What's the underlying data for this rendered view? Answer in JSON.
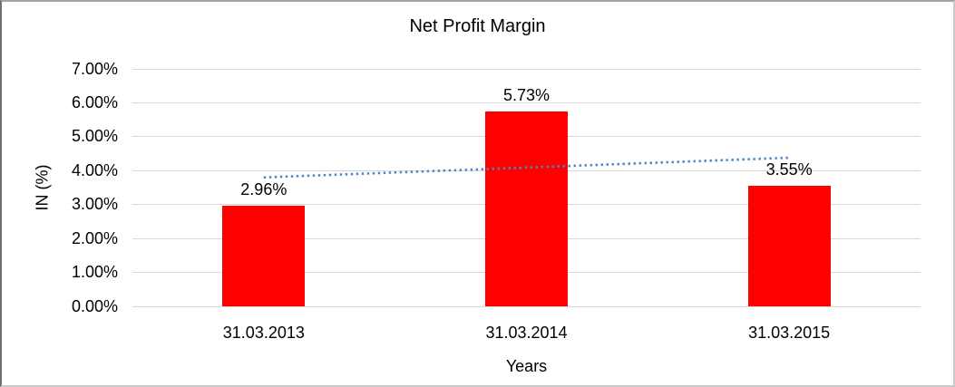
{
  "window": {
    "background": "#ffffff",
    "frame_border_color": "#8c8c8c"
  },
  "chart_data": {
    "type": "bar",
    "title": "Net Profit Margin",
    "xlabel": "Years",
    "ylabel": "IN (%)",
    "categories": [
      "31.03.2013",
      "31.03.2014",
      "31.03.2015"
    ],
    "series": [
      {
        "name": "Net Profit Margin",
        "values": [
          2.96,
          5.73,
          3.55
        ],
        "data_labels": [
          "2.96%",
          "5.73%",
          "3.55%"
        ],
        "color": "#ff0000"
      }
    ],
    "trendline": {
      "type": "linear",
      "line_style": "dotted",
      "color": "#4a86c8",
      "start_value": 3.79,
      "end_value": 4.37
    },
    "y_axis": {
      "min": 0,
      "max": 7,
      "step": 1,
      "tick_labels": [
        "0.00%",
        "1.00%",
        "2.00%",
        "3.00%",
        "4.00%",
        "5.00%",
        "6.00%",
        "7.00%"
      ],
      "format": "percent"
    },
    "grid": true,
    "gridline_color": "#d9d9d9",
    "axis_line_color": "#d9d9d9",
    "legend_position": "none"
  }
}
